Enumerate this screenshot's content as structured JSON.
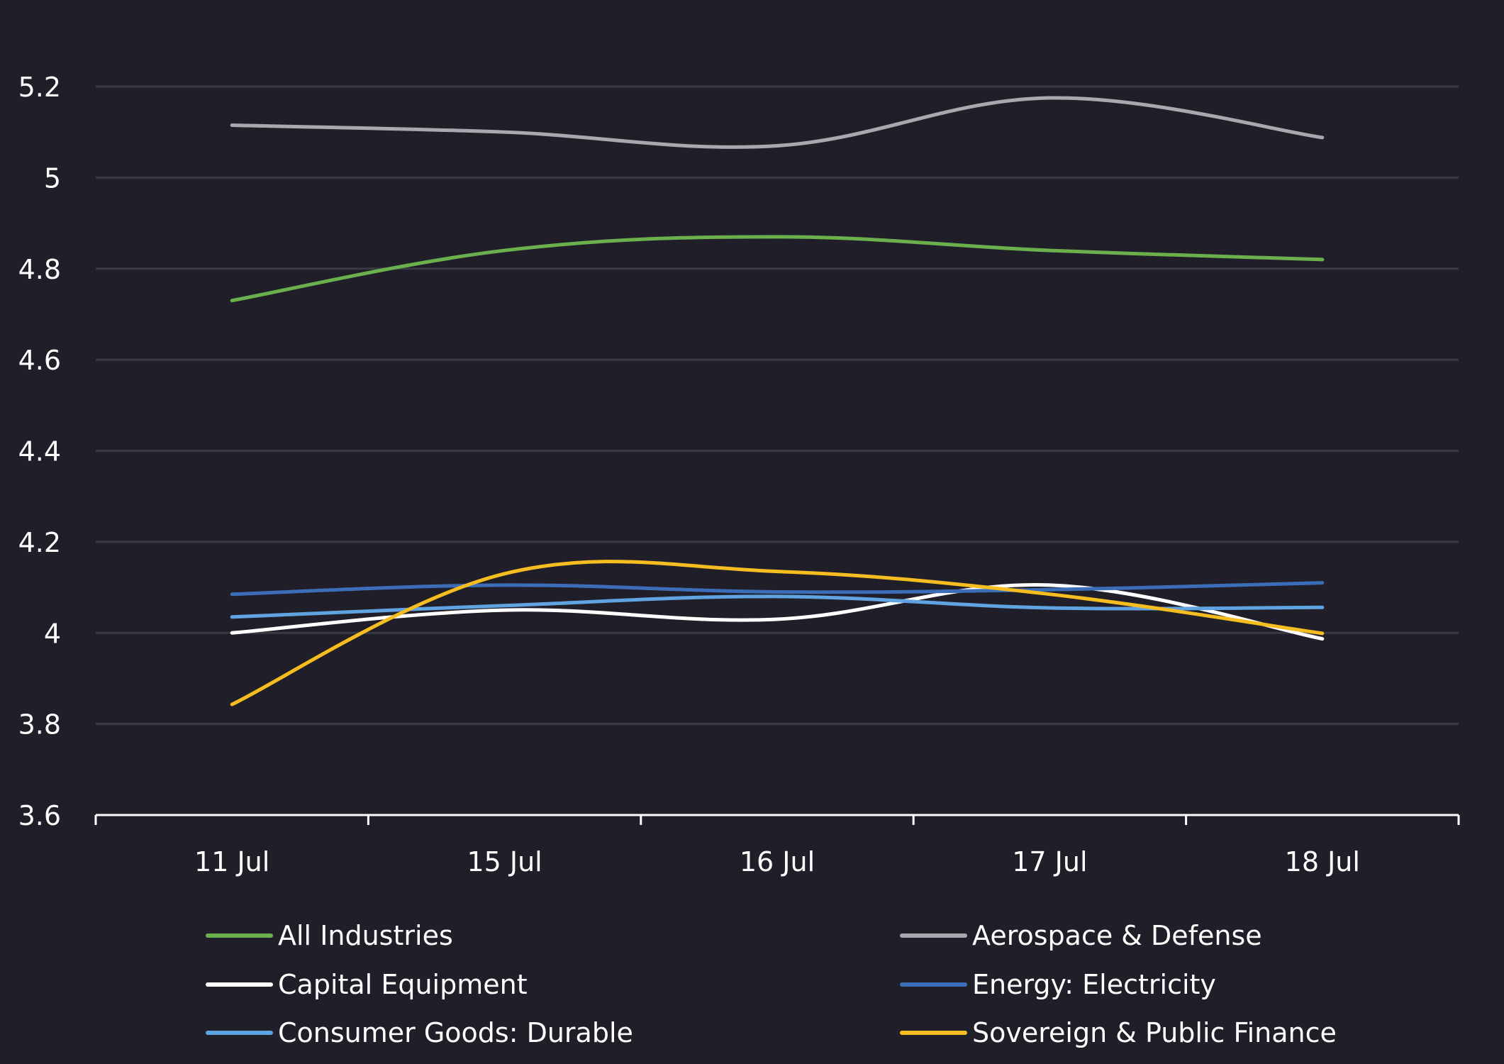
{
  "chart_data": {
    "type": "line",
    "title": "",
    "xlabel": "",
    "ylabel": "",
    "categories": [
      "11 Jul",
      "15 Jul",
      "16 Jul",
      "17 Jul",
      "18 Jul"
    ],
    "ylim": [
      3.6,
      5.3
    ],
    "yticks": [
      3.6,
      3.8,
      4,
      4.2,
      4.4,
      4.6,
      4.8,
      5,
      5.2
    ],
    "ytick_labels": [
      "3.6",
      "3.8",
      "4",
      "4.2",
      "4.4",
      "4.6",
      "4.8",
      "5",
      "5.2"
    ],
    "grid": true,
    "legend_position": "bottom",
    "series": [
      {
        "name": "All Industries",
        "color": "#6ab04c",
        "values": [
          4.73,
          4.84,
          4.87,
          4.84,
          4.82
        ]
      },
      {
        "name": "Aerospace & Defense",
        "color": "#a9a9ad",
        "values": [
          5.115,
          5.1,
          5.07,
          5.175,
          5.088
        ]
      },
      {
        "name": "Capital Equipment",
        "color": "#ffffff",
        "values": [
          4.0,
          4.05,
          4.03,
          4.105,
          3.987
        ]
      },
      {
        "name": "Energy: Electricity",
        "color": "#3b6db8",
        "values": [
          4.085,
          4.105,
          4.09,
          4.095,
          4.11
        ]
      },
      {
        "name": "Consumer Goods: Durable",
        "color": "#5fa3e0",
        "values": [
          4.035,
          4.06,
          4.08,
          4.055,
          4.056
        ]
      },
      {
        "name": "Sovereign & Public Finance",
        "color": "#f5bd1f",
        "values": [
          3.843,
          4.13,
          4.135,
          4.085,
          3.999
        ]
      }
    ]
  }
}
